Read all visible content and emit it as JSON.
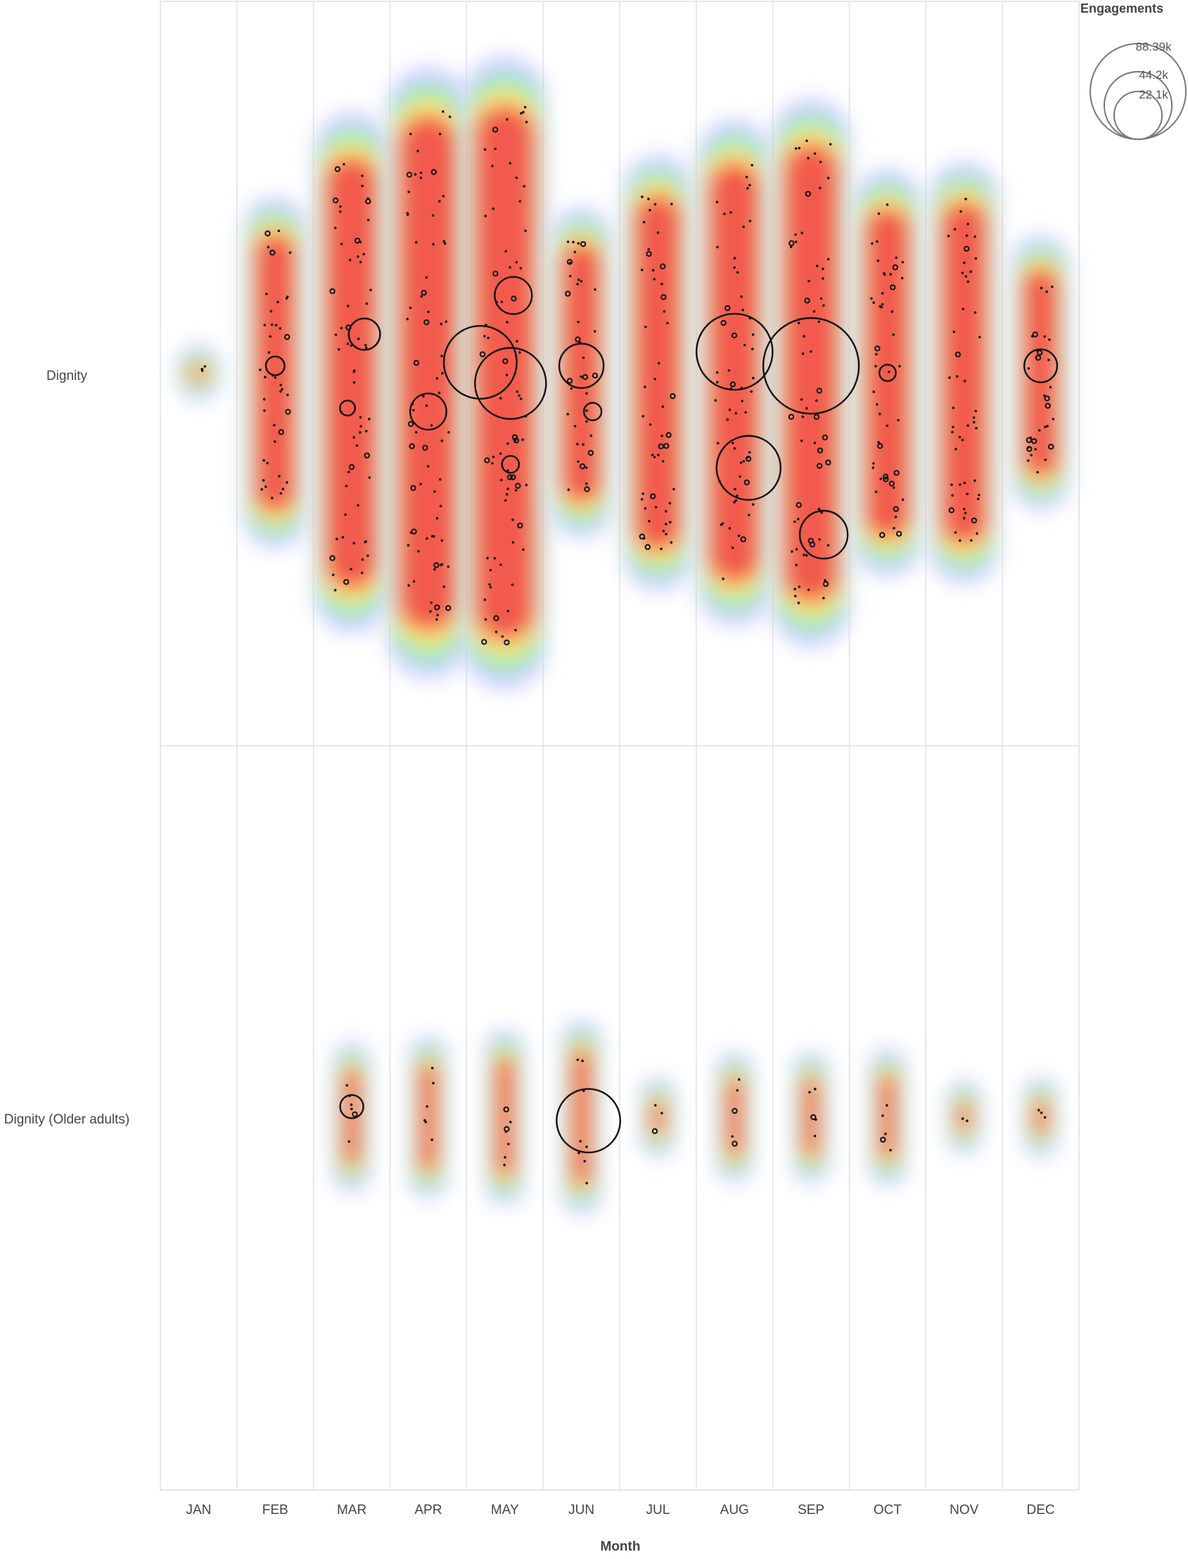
{
  "chart_data": {
    "type": "scatter",
    "subtype": "beeswarm-bubble-with-density",
    "title": "",
    "xlabel": "Month",
    "ylabel": "",
    "categories": [
      "JAN",
      "FEB",
      "MAR",
      "APR",
      "MAY",
      "JUN",
      "JUL",
      "AUG",
      "SEP",
      "OCT",
      "NOV",
      "DEC"
    ],
    "rows": [
      "Dignity",
      "Dignity (Older adults)"
    ],
    "grid": true,
    "legend": {
      "title": "Engagements",
      "position": "top-right",
      "sizes": [
        88390,
        44200,
        22100
      ],
      "labels": [
        "88.39k",
        "44.2k",
        "22.1k"
      ]
    },
    "density": {
      "colors": [
        "#ffffff",
        "#c6c9ff",
        "#8ef0a3",
        "#ffe97a",
        "#ff9b5a",
        "#f25a4e"
      ],
      "spread": [
        [
          0.02,
          0.44,
          0.68,
          0.81,
          0.84,
          0.41,
          0.56,
          0.66,
          0.72,
          0.52,
          0.54,
          0.33
        ],
        [
          0,
          0,
          0.17,
          0.19,
          0.21,
          0.24,
          0.06,
          0.14,
          0.14,
          0.15,
          0.05,
          0.06
        ]
      ]
    },
    "bubbles": [
      {
        "row": "Dignity",
        "month": "MAR",
        "pos": 0.11,
        "engagements": 9500
      },
      {
        "row": "Dignity",
        "month": "MAR",
        "pos": -0.1,
        "engagements": 2200
      },
      {
        "row": "Dignity",
        "month": "FEB",
        "pos": 0.02,
        "engagements": 3400
      },
      {
        "row": "Dignity",
        "month": "APR",
        "pos": -0.11,
        "engagements": 12600
      },
      {
        "row": "Dignity",
        "month": "MAY",
        "pos": 0.22,
        "engagements": 13300
      },
      {
        "row": "Dignity",
        "month": "MAY",
        "pos": 0.03,
        "engagements": 51200
      },
      {
        "row": "Dignity",
        "month": "MAY",
        "pos": -0.03,
        "engagements": 48800
      },
      {
        "row": "Dignity",
        "month": "MAY",
        "pos": -0.26,
        "engagements": 2800
      },
      {
        "row": "Dignity",
        "month": "JUN",
        "pos": 0.02,
        "engagements": 19000
      },
      {
        "row": "Dignity",
        "month": "JUN",
        "pos": -0.11,
        "engagements": 3000
      },
      {
        "row": "Dignity",
        "month": "AUG",
        "pos": 0.06,
        "engagements": 56000
      },
      {
        "row": "Dignity",
        "month": "AUG",
        "pos": -0.27,
        "engagements": 39500
      },
      {
        "row": "Dignity",
        "month": "SEP",
        "pos": 0.02,
        "engagements": 88390
      },
      {
        "row": "Dignity",
        "month": "SEP",
        "pos": -0.46,
        "engagements": 22100
      },
      {
        "row": "Dignity",
        "month": "OCT",
        "pos": 0.0,
        "engagements": 2600
      },
      {
        "row": "Dignity",
        "month": "DEC",
        "pos": 0.02,
        "engagements": 10500
      },
      {
        "row": "Dignity (Older adults)",
        "month": "MAR",
        "pos": 0.03,
        "engagements": 5200
      },
      {
        "row": "Dignity (Older adults)",
        "month": "JUN",
        "pos": -0.01,
        "engagements": 39000
      }
    ]
  }
}
